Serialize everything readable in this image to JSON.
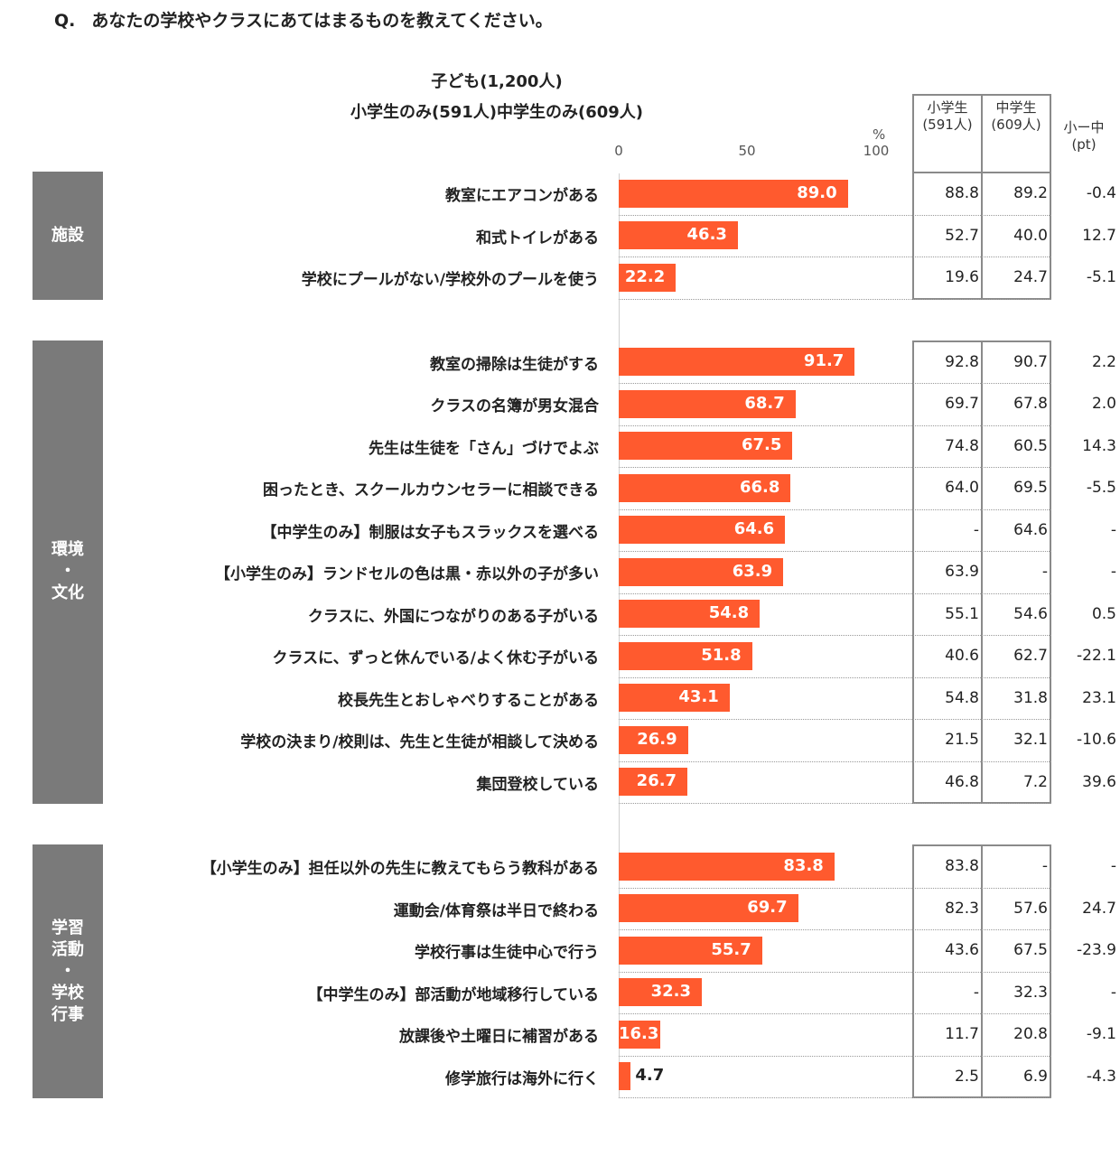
{
  "question": {
    "mark": "Q.",
    "text": "あなたの学校やクラスにあてはまるものを教えてください。"
  },
  "header": {
    "line1": "子ども(1,200人)",
    "line2": "小学生のみ(591人)中学生のみ(609人)"
  },
  "axis": {
    "ticks": [
      "0",
      "50",
      "100"
    ],
    "unit": "%"
  },
  "columns": {
    "elem": [
      "小学生",
      "(591人)"
    ],
    "jr": [
      "中学生",
      "(609人)"
    ],
    "diff": [
      "小ー中",
      "(pt)"
    ]
  },
  "colors": {
    "bar": "#ff5a2e",
    "group": "#7a7a7a"
  },
  "chart_data": {
    "type": "bar",
    "orientation": "horizontal",
    "xlim": [
      0,
      100
    ],
    "series": [
      {
        "name": "子ども(1,200人)",
        "values": [
          89.0,
          46.3,
          22.2,
          91.7,
          68.7,
          67.5,
          66.8,
          64.6,
          63.9,
          54.8,
          51.8,
          43.1,
          26.9,
          26.7,
          83.8,
          69.7,
          55.7,
          32.3,
          16.3,
          4.7
        ]
      }
    ],
    "groups": [
      {
        "label": "施設",
        "rows": [
          {
            "label": "教室にエアコンがある",
            "value": "89.0",
            "elem": "88.8",
            "jr": "89.2",
            "diff": "-0.4"
          },
          {
            "label": "和式トイレがある",
            "value": "46.3",
            "elem": "52.7",
            "jr": "40.0",
            "diff": "12.7"
          },
          {
            "label": "学校にプールがない/学校外のプールを使う",
            "value": "22.2",
            "elem": "19.6",
            "jr": "24.7",
            "diff": "-5.1"
          }
        ]
      },
      {
        "label": "環境・文化",
        "label_lines": [
          "環境",
          "・",
          "文化"
        ],
        "rows": [
          {
            "label": "教室の掃除は生徒がする",
            "value": "91.7",
            "elem": "92.8",
            "jr": "90.7",
            "diff": "2.2"
          },
          {
            "label": "クラスの名簿が男女混合",
            "value": "68.7",
            "elem": "69.7",
            "jr": "67.8",
            "diff": "2.0"
          },
          {
            "label": "先生は生徒を「さん」づけでよぶ",
            "value": "67.5",
            "elem": "74.8",
            "jr": "60.5",
            "diff": "14.3"
          },
          {
            "label": "困ったとき、スクールカウンセラーに相談できる",
            "value": "66.8",
            "elem": "64.0",
            "jr": "69.5",
            "diff": "-5.5"
          },
          {
            "label": "【中学生のみ】制服は女子もスラックスを選べる",
            "value": "64.6",
            "elem": "-",
            "jr": "64.6",
            "diff": "-"
          },
          {
            "label": "【小学生のみ】ランドセルの色は黒・赤以外の子が多い",
            "value": "63.9",
            "elem": "63.9",
            "jr": "-",
            "diff": "-"
          },
          {
            "label": "クラスに、外国につながりのある子がいる",
            "value": "54.8",
            "elem": "55.1",
            "jr": "54.6",
            "diff": "0.5"
          },
          {
            "label": "クラスに、ずっと休んでいる/よく休む子がいる",
            "value": "51.8",
            "elem": "40.6",
            "jr": "62.7",
            "diff": "-22.1"
          },
          {
            "label": "校長先生とおしゃべりすることがある",
            "value": "43.1",
            "elem": "54.8",
            "jr": "31.8",
            "diff": "23.1"
          },
          {
            "label": "学校の決まり/校則は、先生と生徒が相談して決める",
            "value": "26.9",
            "elem": "21.5",
            "jr": "32.1",
            "diff": "-10.6"
          },
          {
            "label": "集団登校している",
            "value": "26.7",
            "elem": "46.8",
            "jr": "7.2",
            "diff": "39.6"
          }
        ]
      },
      {
        "label": "学習活動・学校行事",
        "label_lines": [
          "学習",
          "活動",
          "・",
          "学校",
          "行事"
        ],
        "rows": [
          {
            "label": "【小学生のみ】担任以外の先生に教えてもらう教科がある",
            "value": "83.8",
            "elem": "83.8",
            "jr": "-",
            "diff": "-"
          },
          {
            "label": "運動会/体育祭は半日で終わる",
            "value": "69.7",
            "elem": "82.3",
            "jr": "57.6",
            "diff": "24.7"
          },
          {
            "label": "学校行事は生徒中心で行う",
            "value": "55.7",
            "elem": "43.6",
            "jr": "67.5",
            "diff": "-23.9"
          },
          {
            "label": "【中学生のみ】部活動が地域移行している",
            "value": "32.3",
            "elem": "-",
            "jr": "32.3",
            "diff": "-"
          },
          {
            "label": "放課後や土曜日に補習がある",
            "value": "16.3",
            "elem": "11.7",
            "jr": "20.8",
            "diff": "-9.1"
          },
          {
            "label": "修学旅行は海外に行く",
            "value": "4.7",
            "elem": "2.5",
            "jr": "6.9",
            "diff": "-4.3"
          }
        ]
      }
    ]
  }
}
